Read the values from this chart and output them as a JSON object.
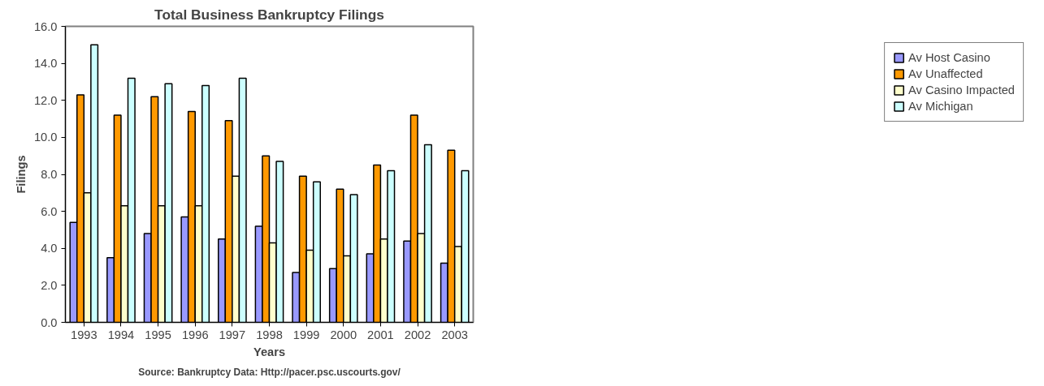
{
  "chart_data": {
    "type": "bar",
    "title": "Total Business Bankruptcy Filings",
    "xlabel": "Years",
    "ylabel": "Filings",
    "categories": [
      "1993",
      "1994",
      "1995",
      "1996",
      "1997",
      "1998",
      "1999",
      "2000",
      "2001",
      "2002",
      "2003"
    ],
    "series": [
      {
        "name": "Av Host Casino",
        "color": "#9999ff",
        "values": [
          5.4,
          3.5,
          4.8,
          5.7,
          4.5,
          5.2,
          2.7,
          2.9,
          3.7,
          4.4,
          3.2
        ]
      },
      {
        "name": "Av Unaffected",
        "color": "#ff9900",
        "values": [
          12.3,
          11.2,
          12.2,
          11.4,
          10.9,
          9.0,
          7.9,
          7.2,
          8.5,
          11.2,
          9.3
        ]
      },
      {
        "name": "Av Casino Impacted",
        "color": "#ffffcc",
        "values": [
          7.0,
          6.3,
          6.3,
          6.3,
          7.9,
          4.3,
          3.9,
          3.6,
          4.5,
          4.8,
          4.1
        ]
      },
      {
        "name": "Av Michigan",
        "color": "#ccffff",
        "values": [
          15.0,
          13.2,
          12.9,
          12.8,
          13.2,
          8.7,
          7.6,
          6.9,
          8.2,
          9.6,
          8.2
        ]
      }
    ],
    "ylim": [
      0,
      16
    ],
    "yticks": [
      {
        "value": 0,
        "label": "0.0"
      },
      {
        "value": 2,
        "label": "2.0"
      },
      {
        "value": 4,
        "label": "4.0"
      },
      {
        "value": 6,
        "label": "6.0"
      },
      {
        "value": 8,
        "label": "8.0"
      },
      {
        "value": 10,
        "label": "10.0"
      },
      {
        "value": 12,
        "label": "12.0"
      },
      {
        "value": 14,
        "label": "14.0"
      },
      {
        "value": 16,
        "label": "16.0"
      }
    ],
    "grid": false,
    "legend": "right",
    "annotations": [
      "Source: Bankruptcy Data: Http://pacer.psc.uscourts.gov/"
    ]
  }
}
